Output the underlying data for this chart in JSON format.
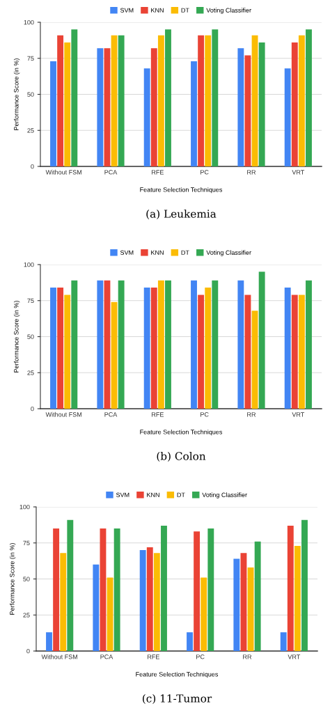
{
  "chart_data": [
    {
      "type": "bar",
      "xlabel": "Feature Selection Techniques",
      "ylabel": "Performance Score (in %)",
      "categories": [
        "Without FSM",
        "PCA",
        "RFE",
        "PC",
        "RR",
        "VRT"
      ],
      "series": [
        {
          "name": "SVM",
          "color": "#4285f4",
          "values": [
            73,
            82,
            68,
            73,
            82,
            68
          ]
        },
        {
          "name": "KNN",
          "color": "#ea4335",
          "values": [
            91,
            82,
            82,
            91,
            77,
            86
          ]
        },
        {
          "name": "DT",
          "color": "#fbbc04",
          "values": [
            86,
            91,
            91,
            91,
            91,
            91
          ]
        },
        {
          "name": "Voting Classifier",
          "color": "#34a853",
          "values": [
            95,
            91,
            95,
            95,
            86,
            95
          ]
        }
      ],
      "ylim": [
        0,
        100
      ],
      "yticks": [
        0,
        25,
        50,
        75,
        100
      ],
      "grid": "y",
      "legend": "top",
      "annotations": [
        "(a) Leukemia"
      ]
    },
    {
      "type": "bar",
      "xlabel": "Feature Selection Techniques",
      "ylabel": "Performance Score (in %)",
      "categories": [
        "Without FSM",
        "PCA",
        "RFE",
        "PC",
        "RR",
        "VRT"
      ],
      "series": [
        {
          "name": "SVM",
          "color": "#4285f4",
          "values": [
            84,
            89,
            84,
            89,
            89,
            84
          ]
        },
        {
          "name": "KNN",
          "color": "#ea4335",
          "values": [
            84,
            89,
            84,
            79,
            79,
            79
          ]
        },
        {
          "name": "DT",
          "color": "#fbbc04",
          "values": [
            79,
            74,
            89,
            84,
            68,
            79
          ]
        },
        {
          "name": "Voting Classifier",
          "color": "#34a853",
          "values": [
            89,
            89,
            89,
            89,
            95,
            89
          ]
        }
      ],
      "ylim": [
        0,
        100
      ],
      "yticks": [
        0,
        25,
        50,
        75,
        100
      ],
      "grid": "y",
      "legend": "top",
      "annotations": [
        "(b) Colon"
      ]
    },
    {
      "type": "bar",
      "xlabel": "Feature Selection Techniques",
      "ylabel": "Performance Score (in %)",
      "categories": [
        "Without FSM",
        "PCA",
        "RFE",
        "PC",
        "RR",
        "VRT"
      ],
      "series": [
        {
          "name": "SVM",
          "color": "#4285f4",
          "values": [
            13,
            60,
            70,
            13,
            64,
            13
          ]
        },
        {
          "name": "KNN",
          "color": "#ea4335",
          "values": [
            85,
            85,
            72,
            83,
            68,
            87
          ]
        },
        {
          "name": "DT",
          "color": "#fbbc04",
          "values": [
            68,
            51,
            68,
            51,
            58,
            73
          ]
        },
        {
          "name": "Voting Classifier",
          "color": "#34a853",
          "values": [
            91,
            85,
            87,
            85,
            76,
            91
          ]
        }
      ],
      "ylim": [
        0,
        100
      ],
      "yticks": [
        0,
        25,
        50,
        75,
        100
      ],
      "grid": "y",
      "legend": "top",
      "annotations": [
        "(c) 11-Tumor"
      ]
    }
  ]
}
